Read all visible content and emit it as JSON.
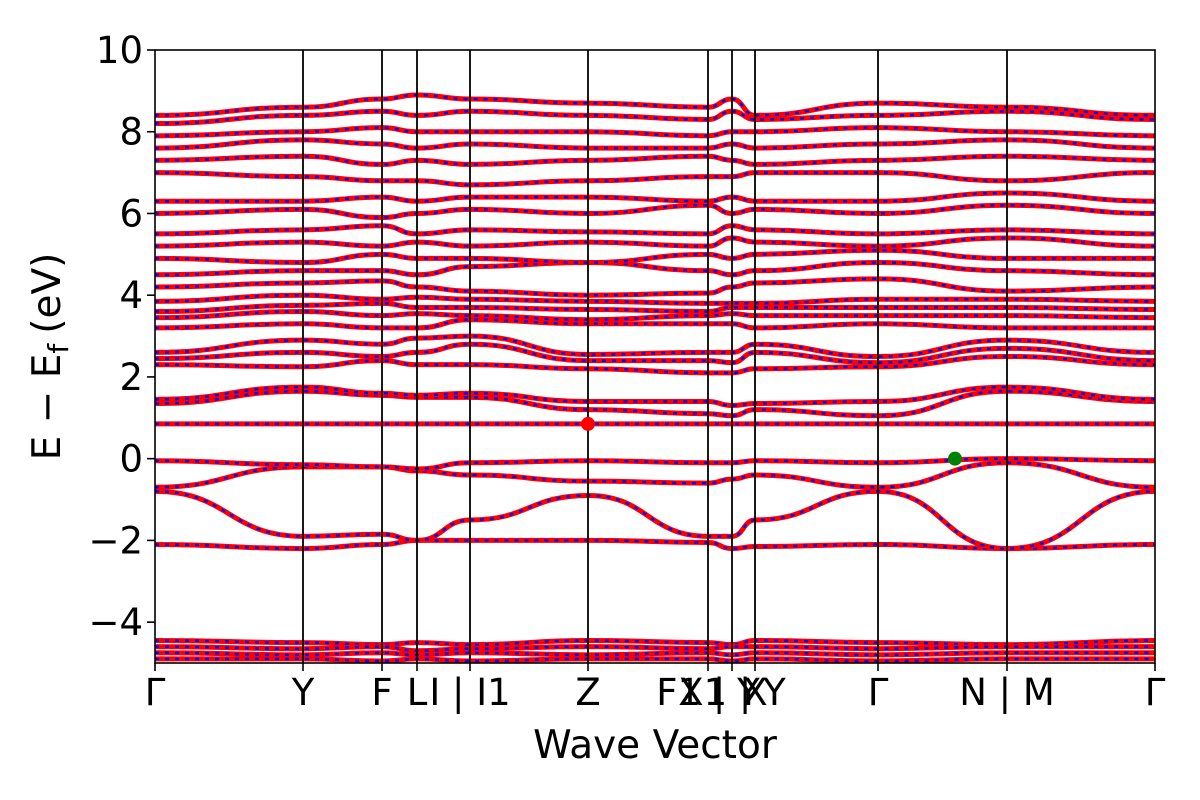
{
  "chart_data": {
    "type": "line",
    "title": "",
    "xlabel": "Wave Vector",
    "ylabel": "E − E",
    "ylabel_sub": "f",
    "ylabel_unit": "(eV)",
    "ylim": [
      -5,
      10
    ],
    "yticks": [
      -4,
      -2,
      0,
      2,
      4,
      6,
      8,
      10
    ],
    "ytick_labels": [
      "−4",
      "−2",
      "0",
      "2",
      "4",
      "6",
      "8",
      "10"
    ],
    "xlim": [
      0,
      1.0
    ],
    "kpath_ticks": [
      {
        "x": 0.0,
        "label": "Γ"
      },
      {
        "x": 0.148,
        "label": "Y"
      },
      {
        "x": 0.227,
        "label": "F"
      },
      {
        "x": 0.262,
        "label": "L"
      },
      {
        "x": 0.315,
        "label": "I | I1"
      },
      {
        "x": 0.433,
        "label": "Z"
      },
      {
        "x": 0.553,
        "label": "F1 | Y"
      },
      {
        "x": 0.577,
        "label": "X1 | Y"
      },
      {
        "x": 0.6,
        "label": "X"
      },
      {
        "x": 0.723,
        "label": "Γ"
      },
      {
        "x": 0.852,
        "label": "N | M"
      },
      {
        "x": 1.0,
        "label": "Γ"
      }
    ],
    "series": [
      {
        "style": "solid",
        "color": "#ff0000"
      },
      {
        "style": "dotted",
        "color": "#0000ff"
      }
    ],
    "markers": [
      {
        "name": "CBM",
        "x": 0.433,
        "y": 0.85,
        "color": "#ff0000"
      },
      {
        "name": "VBM",
        "x": 0.8,
        "y": 0.0,
        "color": "#008000"
      }
    ],
    "bands": [
      {
        "name": "core-1",
        "y": [
          -4.45,
          -4.5,
          -4.55,
          -4.5,
          -4.55,
          -4.45,
          -4.5,
          -4.55,
          -4.45,
          -4.5,
          -4.55,
          -4.45
        ]
      },
      {
        "name": "core-2",
        "y": [
          -4.6,
          -4.65,
          -4.6,
          -4.7,
          -4.65,
          -4.6,
          -4.65,
          -4.6,
          -4.6,
          -4.65,
          -4.6,
          -4.6
        ]
      },
      {
        "name": "core-3",
        "y": [
          -4.75,
          -4.8,
          -4.75,
          -4.8,
          -4.75,
          -4.8,
          -4.75,
          -4.8,
          -4.75,
          -4.8,
          -4.75,
          -4.75
        ]
      },
      {
        "name": "core-4",
        "y": [
          -4.9,
          -4.9,
          -4.95,
          -4.9,
          -4.95,
          -4.9,
          -4.9,
          -4.95,
          -4.9,
          -4.95,
          -4.9,
          -4.9
        ]
      },
      {
        "name": "vb-1",
        "y": [
          -2.1,
          -2.2,
          -2.1,
          -2.0,
          -2.0,
          -2.0,
          -2.05,
          -2.2,
          -2.15,
          -2.1,
          -2.2,
          -2.1
        ]
      },
      {
        "name": "vb-2",
        "y": [
          -0.8,
          -1.9,
          -1.85,
          -2.0,
          -1.5,
          -0.9,
          -1.9,
          -1.9,
          -1.5,
          -0.8,
          -2.2,
          -0.8
        ]
      },
      {
        "name": "vb-3",
        "y": [
          -0.7,
          -0.2,
          -0.2,
          -0.3,
          -0.4,
          -0.55,
          -0.6,
          -0.5,
          -0.4,
          -0.7,
          -0.1,
          -0.7
        ]
      },
      {
        "name": "vb-4",
        "y": [
          -0.05,
          -0.15,
          -0.2,
          -0.25,
          -0.1,
          -0.05,
          -0.1,
          -0.1,
          -0.05,
          -0.1,
          0.0,
          -0.05
        ]
      },
      {
        "name": "flat-1",
        "y": [
          0.85,
          0.85,
          0.85,
          0.85,
          0.85,
          0.85,
          0.85,
          0.85,
          0.85,
          0.85,
          0.85,
          0.85
        ]
      },
      {
        "name": "cb-1",
        "y": [
          1.35,
          1.65,
          1.55,
          1.5,
          1.5,
          1.2,
          1.1,
          1.05,
          1.2,
          1.05,
          1.65,
          1.4
        ]
      },
      {
        "name": "cb-2",
        "y": [
          1.45,
          1.75,
          1.6,
          1.55,
          1.6,
          1.4,
          1.4,
          1.3,
          1.35,
          1.4,
          1.75,
          1.45
        ]
      },
      {
        "name": "cb-3",
        "y": [
          2.3,
          2.25,
          2.4,
          2.3,
          2.3,
          2.2,
          2.1,
          2.1,
          2.2,
          2.25,
          2.5,
          2.3
        ]
      },
      {
        "name": "cb-4",
        "y": [
          2.45,
          2.6,
          2.5,
          2.6,
          2.8,
          2.4,
          2.4,
          2.35,
          2.6,
          2.35,
          2.7,
          2.4
        ]
      },
      {
        "name": "cb-5",
        "y": [
          2.6,
          2.9,
          2.8,
          2.95,
          3.0,
          2.55,
          2.6,
          2.6,
          2.8,
          2.5,
          2.9,
          2.6
        ]
      },
      {
        "name": "cb-6",
        "y": [
          3.2,
          3.3,
          3.2,
          3.2,
          3.4,
          3.3,
          3.3,
          3.3,
          3.2,
          3.3,
          3.2,
          3.2
        ]
      },
      {
        "name": "cb-7",
        "y": [
          3.45,
          3.6,
          3.5,
          3.55,
          3.5,
          3.4,
          3.5,
          3.55,
          3.5,
          3.5,
          3.5,
          3.45
        ]
      },
      {
        "name": "cb-8",
        "y": [
          3.6,
          3.75,
          3.8,
          3.7,
          3.7,
          3.65,
          3.6,
          3.7,
          3.7,
          3.7,
          3.7,
          3.65
        ]
      },
      {
        "name": "cb-9",
        "y": [
          3.85,
          4.0,
          3.9,
          3.95,
          3.9,
          3.85,
          3.8,
          3.8,
          3.8,
          3.9,
          3.9,
          3.85
        ]
      },
      {
        "name": "cb-10",
        "y": [
          4.2,
          4.3,
          4.35,
          4.2,
          4.1,
          4.0,
          4.05,
          4.2,
          4.3,
          4.4,
          4.1,
          4.2
        ]
      },
      {
        "name": "cb-11",
        "y": [
          4.5,
          4.6,
          4.6,
          4.5,
          4.7,
          4.8,
          4.6,
          4.5,
          4.6,
          4.8,
          4.6,
          4.5
        ]
      },
      {
        "name": "cb-12",
        "y": [
          4.9,
          4.8,
          5.0,
          4.9,
          4.9,
          4.8,
          5.0,
          4.9,
          5.0,
          5.1,
          4.9,
          4.9
        ]
      },
      {
        "name": "cb-13",
        "y": [
          5.2,
          5.3,
          5.2,
          5.3,
          5.2,
          5.3,
          5.2,
          5.4,
          5.3,
          5.2,
          5.4,
          5.2
        ]
      },
      {
        "name": "cb-14",
        "y": [
          5.5,
          5.6,
          5.7,
          5.5,
          5.6,
          5.55,
          5.5,
          5.7,
          5.6,
          5.5,
          5.6,
          5.5
        ]
      },
      {
        "name": "cb-15",
        "y": [
          6.0,
          6.1,
          5.9,
          6.0,
          6.1,
          6.0,
          6.2,
          6.0,
          6.1,
          6.0,
          6.2,
          6.0
        ]
      },
      {
        "name": "cb-16",
        "y": [
          6.3,
          6.3,
          6.4,
          6.3,
          6.4,
          6.4,
          6.3,
          6.4,
          6.3,
          6.3,
          6.5,
          6.3
        ]
      },
      {
        "name": "cb-17",
        "y": [
          7.0,
          6.9,
          6.8,
          6.8,
          6.7,
          6.8,
          6.9,
          6.9,
          7.0,
          7.0,
          6.8,
          7.0
        ]
      },
      {
        "name": "cb-18",
        "y": [
          7.3,
          7.4,
          7.2,
          7.3,
          7.2,
          7.3,
          7.4,
          7.3,
          7.2,
          7.3,
          7.4,
          7.3
        ]
      },
      {
        "name": "cb-19",
        "y": [
          7.6,
          7.8,
          7.7,
          7.6,
          7.7,
          7.6,
          7.6,
          7.7,
          7.6,
          7.7,
          7.8,
          7.6
        ]
      },
      {
        "name": "cb-20",
        "y": [
          7.9,
          8.0,
          8.1,
          8.0,
          8.0,
          8.0,
          7.9,
          8.0,
          8.0,
          8.1,
          8.0,
          7.9
        ]
      },
      {
        "name": "cb-21",
        "y": [
          8.2,
          8.4,
          8.5,
          8.4,
          8.5,
          8.4,
          8.3,
          8.5,
          8.3,
          8.4,
          8.5,
          8.3
        ]
      },
      {
        "name": "cb-22",
        "y": [
          8.4,
          8.6,
          8.8,
          8.9,
          8.8,
          8.7,
          8.6,
          8.8,
          8.4,
          8.7,
          8.6,
          8.4
        ]
      }
    ]
  }
}
